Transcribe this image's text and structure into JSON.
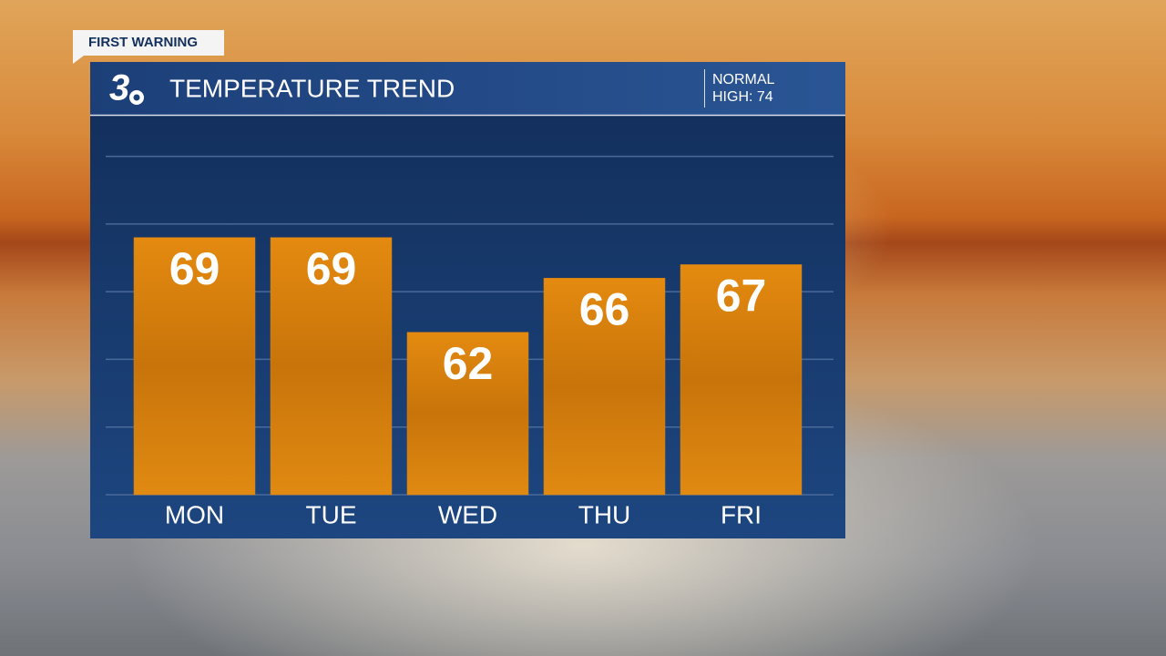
{
  "header": {
    "tag": "FIRST WARNING",
    "logo": "3",
    "title": "TEMPERATURE TREND",
    "normal_label": "NORMAL",
    "normal_high": "HIGH: 74"
  },
  "chart_data": {
    "type": "bar",
    "categories": [
      "MON",
      "TUE",
      "WED",
      "THU",
      "FRI"
    ],
    "values": [
      69,
      69,
      62,
      66,
      67
    ],
    "color": "#d9820d",
    "ylim": [
      50,
      78
    ],
    "yticks": [
      50,
      55,
      60,
      65,
      70,
      75
    ],
    "grid": true
  }
}
